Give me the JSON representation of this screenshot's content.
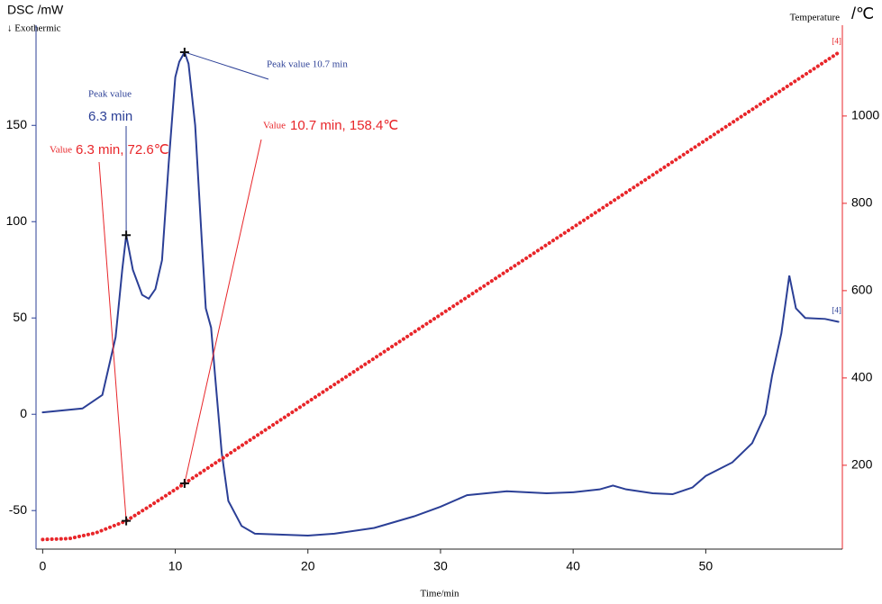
{
  "chart_data": {
    "type": "line",
    "y_label": "DSC /mW",
    "y_note": "↓ Exothermic",
    "y2_title": "Temperature",
    "y2_label": "/℃",
    "x_label": "Time/min",
    "xlim": [
      -0.5,
      60.3
    ],
    "xticks": [
      0,
      10,
      20,
      30,
      40,
      50
    ],
    "ylim": [
      -70,
      202
    ],
    "yticks": [
      -50,
      0,
      50,
      100,
      150
    ],
    "y2lim": [
      8,
      1208
    ],
    "y2ticks": [
      200,
      400,
      600,
      800,
      1000
    ],
    "series": [
      {
        "color": "#2b3f96",
        "axis": "y",
        "end_marker": "[4]",
        "x": [
          0,
          3,
          4.5,
          5.5,
          6.0,
          6.3,
          6.8,
          7.5,
          8,
          8.5,
          9,
          9.5,
          10,
          10.3,
          10.7,
          11,
          11.5,
          12,
          12.3,
          12.7,
          13,
          13.5,
          14,
          15,
          16,
          20,
          22,
          25,
          28,
          30,
          32,
          35,
          38,
          40,
          42,
          43,
          44,
          46,
          47.5,
          49,
          50,
          52,
          53.5,
          54.5,
          55,
          55.7,
          56.3,
          56.8,
          57.5,
          59,
          60
        ],
        "values": [
          1,
          3,
          10,
          40,
          75,
          93,
          75,
          62,
          60,
          65,
          80,
          130,
          175,
          183,
          188,
          182,
          150,
          90,
          55,
          45,
          20,
          -20,
          -45,
          -58,
          -62,
          -63,
          -62,
          -59,
          -53,
          -48,
          -42,
          -40,
          -41,
          -40.5,
          -39,
          -37,
          -39,
          -41,
          -41.5,
          -38,
          -32,
          -25,
          -15,
          0,
          20,
          42,
          72,
          55,
          50,
          49.5,
          48
        ]
      },
      {
        "color": "#e8262a",
        "axis": "y2",
        "end_marker": "[4]",
        "x": [
          0,
          2,
          4,
          6.3,
          8,
          10.7,
          15,
          20,
          30,
          40,
          50,
          60
        ],
        "values": [
          30,
          32,
          45,
          72.6,
          105,
          158.4,
          245,
          345,
          545,
          745,
          945,
          1145
        ]
      }
    ],
    "annotations": [
      {
        "title": "Peak value",
        "text": "6.3 min",
        "x": 6.3,
        "y": 93,
        "axis": "y",
        "color": "#2b3f96"
      },
      {
        "text": "Peak value 10.7 min",
        "x": 10.7,
        "y": 188,
        "axis": "y",
        "color": "#2b3f96"
      },
      {
        "title": "Value",
        "text": "6.3 min, 72.6℃",
        "x": 6.3,
        "y": 72.6,
        "axis": "y2",
        "color": "#e8262a"
      },
      {
        "title": "Value",
        "text": "10.7 min, 158.4℃",
        "x": 10.7,
        "y": 158.4,
        "axis": "y2",
        "color": "#e8262a"
      }
    ]
  }
}
